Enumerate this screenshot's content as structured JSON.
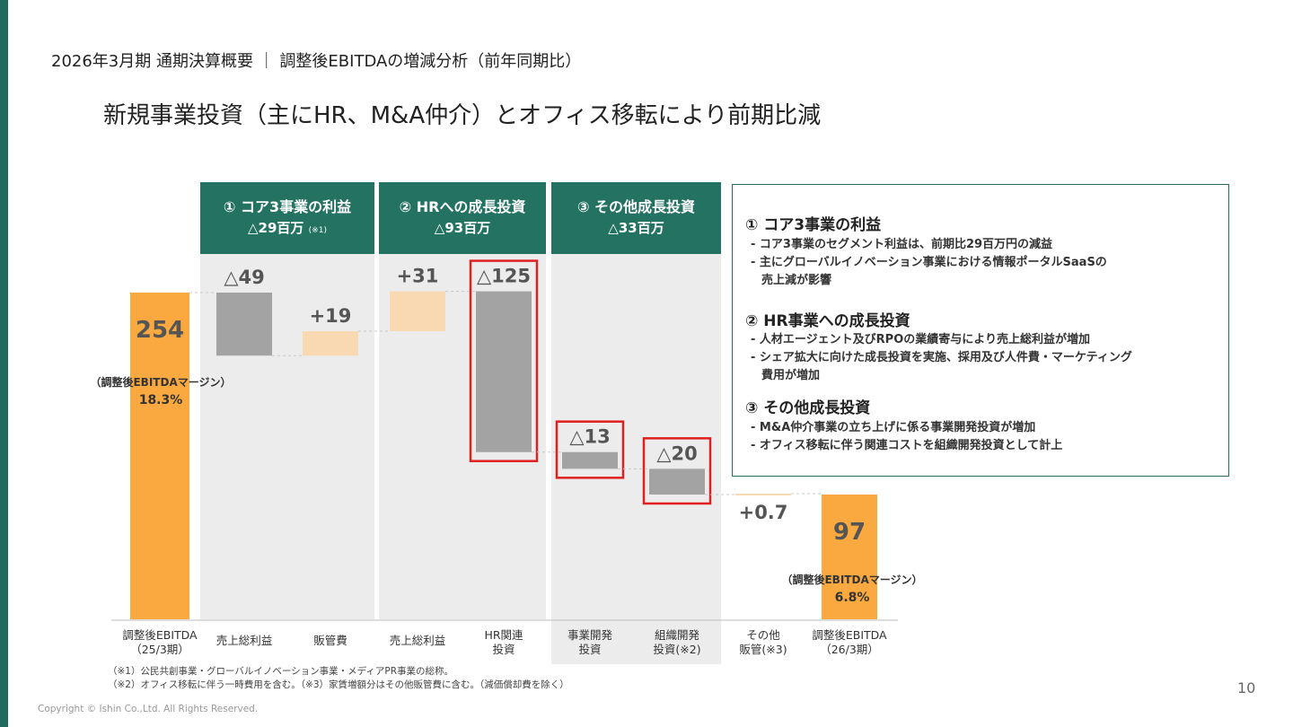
{
  "header": {
    "pretitle": "2026年3月期 通期決算概要 ｜ 調整後EBITDAの増減分析（前年同期比）",
    "title": "新規事業投資（主にHR、M&A仲介）とオフィス移転により前期比減"
  },
  "groups": [
    {
      "label": "① コア3事業の利益",
      "value": "△29百万",
      "note": "(※1)"
    },
    {
      "label": "② HRへの成長投資",
      "value": "△93百万",
      "note": ""
    },
    {
      "label": "③ その他成長投資",
      "value": "△33百万",
      "note": ""
    }
  ],
  "chart_data": {
    "type": "waterfall",
    "unit": "百万",
    "categories": [
      "調整後EBITDA（25/3期）",
      "売上総利益",
      "販管費",
      "売上総利益",
      "HR関連投資",
      "事業開発投資",
      "組織開発投資(※2)",
      "その他販管(※3)",
      "調整後EBITDA（26/3期）"
    ],
    "values": [
      254,
      -49,
      19,
      31,
      -125,
      -13,
      -20,
      0.7,
      97
    ],
    "bar_kinds": [
      "total",
      "decrease",
      "increase",
      "increase",
      "decrease",
      "decrease",
      "decrease",
      "increase",
      "total"
    ],
    "value_labels": [
      "254",
      "△49",
      "+19",
      "+31",
      "△125",
      "△13",
      "△20",
      "+0.7",
      "97"
    ],
    "highlighted": [
      4,
      5,
      6
    ],
    "margins": [
      {
        "label": "（調整後EBITDAマージン）",
        "value": "18.3%"
      },
      {
        "label": "（調整後EBITDAマージン）",
        "value": "6.8%"
      }
    ],
    "colors": {
      "total": "#f9a93f",
      "decrease": "#a3a3a3",
      "increase": "#f8d9b2",
      "highlight": "#e02020",
      "group_header": "#247262",
      "group_bg": "#ececec"
    }
  },
  "x_labels": [
    [
      "調整後EBITDA",
      "（25/3期）"
    ],
    [
      "売上総利益"
    ],
    [
      "販管費"
    ],
    [
      "売上総利益"
    ],
    [
      "HR関連",
      "投資"
    ],
    [
      "事業開発",
      "投資"
    ],
    [
      "組織開発",
      "投資(※2)"
    ],
    [
      "その他",
      "販管(※3)"
    ],
    [
      "調整後EBITDA",
      "（26/3期）"
    ]
  ],
  "info": {
    "s1_title": "① コア3事業の利益",
    "s1_b1": "- コア3事業のセグメント利益は、前期比29百万円の減益",
    "s1_b2": "- 主にグローバルイノベーション事業における情報ポータルSaaSの",
    "s1_b2b": "売上減が影響",
    "s2_title": "② HR事業への成長投資",
    "s2_b1": "- 人材エージェント及びRPOの業績寄与により売上総利益が増加",
    "s2_b2": "- シェア拡大に向けた成長投資を実施、採用及び人件費・マーケティング",
    "s2_b2b": "費用が増加",
    "s3_title": "③ その他成長投資",
    "s3_b1": "- M&A仲介事業の立ち上げに係る事業開発投資が増加",
    "s3_b2": "- オフィス移転に伴う関連コストを組織開発投資として計上"
  },
  "footnotes": {
    "f1": "（※1）公民共創事業・グローバルイノベーション事業・メディアPR事業の総称。",
    "f2": "（※2）オフィス移転に伴う一時費用を含む。（※3）家賃増額分はその他販管費に含む。（減価償却費を除く）"
  },
  "copyright": "Copyright © Ishin Co.,Ltd. All Rights Reserved.",
  "page_number": "10"
}
